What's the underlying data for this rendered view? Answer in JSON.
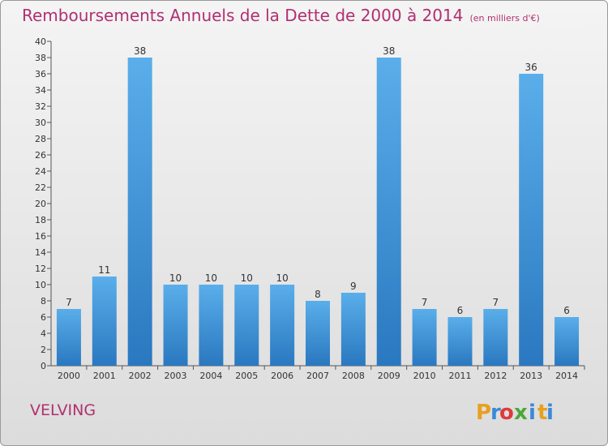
{
  "title": "Remboursements Annuels de la Dette de 2000 à 2014",
  "unit": "(en milliers d'€)",
  "commune": "VELVING",
  "brand": {
    "name": "Proxiti",
    "letters": [
      "P",
      "r",
      "o",
      "x",
      "i",
      "t",
      "i"
    ],
    "colors": [
      "#e8a020",
      "#3a8ad8",
      "#e03a3a",
      "#4aa83a",
      "#3a8ad8",
      "#e8a020",
      "#3a8ad8"
    ]
  },
  "colors": {
    "title": "#b03070",
    "bar_light": "#5aaeea",
    "bar_dark": "#2a78c0"
  },
  "chart_data": {
    "type": "bar",
    "title": "Remboursements Annuels de la Dette de 2000 à 2014",
    "subtitle": "(en milliers d'€)",
    "categories": [
      "2000",
      "2001",
      "2002",
      "2003",
      "2004",
      "2005",
      "2006",
      "2007",
      "2008",
      "2009",
      "2010",
      "2011",
      "2012",
      "2013",
      "2014"
    ],
    "values": [
      7,
      11,
      38,
      10,
      10,
      10,
      10,
      8,
      9,
      38,
      7,
      6,
      7,
      36,
      6
    ],
    "ylim": [
      0,
      40
    ],
    "yticks": [
      0,
      2,
      4,
      6,
      8,
      10,
      12,
      14,
      16,
      18,
      20,
      22,
      24,
      26,
      28,
      30,
      32,
      34,
      36,
      38,
      40
    ],
    "grid": false,
    "data_labels": true
  }
}
